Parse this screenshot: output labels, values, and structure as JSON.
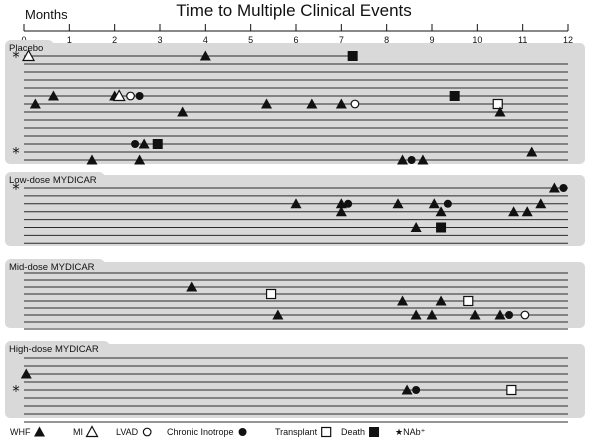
{
  "chart_data": {
    "type": "scatter",
    "title": "Time to Multiple Clinical Events",
    "xlabel": "Months",
    "xlim": [
      0,
      12
    ],
    "xticks": [
      0,
      1,
      2,
      3,
      4,
      5,
      6,
      7,
      8,
      9,
      10,
      11,
      12
    ],
    "colors": {
      "panel": "#d9d9d9",
      "line": "#2b2b2b",
      "marker": "#111111",
      "open": "#ffffff"
    },
    "legend": [
      {
        "label": "WHF",
        "shape": "triangle",
        "fill": "filled"
      },
      {
        "label": "MI",
        "shape": "triangle",
        "fill": "open"
      },
      {
        "label": "LVAD",
        "shape": "circle",
        "fill": "open"
      },
      {
        "label": "Chronic Inotrope",
        "shape": "circle",
        "fill": "filled"
      },
      {
        "label": "Transplant",
        "shape": "square",
        "fill": "open"
      },
      {
        "label": "Death",
        "shape": "square",
        "fill": "filled"
      },
      {
        "label": "★NAb⁺",
        "shape": "star",
        "fill": "text"
      }
    ],
    "panels": [
      {
        "name": "Placebo",
        "patient_count": 14,
        "nab_rows": [
          0,
          12
        ],
        "lines": [
          {
            "row": 0,
            "end": 7.25
          },
          {
            "row": 1,
            "end": 12
          },
          {
            "row": 2,
            "end": 12
          },
          {
            "row": 3,
            "end": 12
          },
          {
            "row": 4,
            "end": 12
          },
          {
            "row": 5,
            "end": 12
          },
          {
            "row": 6,
            "end": 12
          },
          {
            "row": 7,
            "end": 12
          },
          {
            "row": 8,
            "end": 12
          },
          {
            "row": 9,
            "end": 12
          },
          {
            "row": 10,
            "end": 12
          },
          {
            "row": 11,
            "end": 12
          },
          {
            "row": 12,
            "end": 12
          },
          {
            "row": 13,
            "end": 12
          }
        ],
        "events": [
          {
            "row": 0,
            "x": 0.1,
            "type": "MI"
          },
          {
            "row": 0,
            "x": 4.0,
            "type": "WHF"
          },
          {
            "row": 0,
            "x": 7.25,
            "type": "Death"
          },
          {
            "row": 5,
            "x": 0.65,
            "type": "WHF"
          },
          {
            "row": 5,
            "x": 2.0,
            "type": "WHF"
          },
          {
            "row": 5,
            "x": 2.1,
            "type": "MI"
          },
          {
            "row": 5,
            "x": 2.35,
            "type": "LVAD"
          },
          {
            "row": 5,
            "x": 2.55,
            "type": "Chronic Inotrope"
          },
          {
            "row": 5,
            "x": 9.5,
            "type": "Death"
          },
          {
            "row": 6,
            "x": 0.25,
            "type": "WHF"
          },
          {
            "row": 6,
            "x": 5.35,
            "type": "WHF"
          },
          {
            "row": 6,
            "x": 6.35,
            "type": "WHF"
          },
          {
            "row": 6,
            "x": 7.0,
            "type": "WHF"
          },
          {
            "row": 6,
            "x": 7.3,
            "type": "LVAD"
          },
          {
            "row": 6,
            "x": 10.45,
            "type": "Transplant"
          },
          {
            "row": 7,
            "x": 3.5,
            "type": "WHF"
          },
          {
            "row": 7,
            "x": 10.5,
            "type": "WHF"
          },
          {
            "row": 11,
            "x": 2.45,
            "type": "Chronic Inotrope"
          },
          {
            "row": 11,
            "x": 2.65,
            "type": "WHF"
          },
          {
            "row": 11,
            "x": 2.95,
            "type": "Death"
          },
          {
            "row": 12,
            "x": 11.2,
            "type": "WHF"
          },
          {
            "row": 13,
            "x": 1.5,
            "type": "WHF"
          },
          {
            "row": 13,
            "x": 2.55,
            "type": "WHF"
          },
          {
            "row": 13,
            "x": 8.35,
            "type": "WHF"
          },
          {
            "row": 13,
            "x": 8.55,
            "type": "Chronic Inotrope"
          },
          {
            "row": 13,
            "x": 8.8,
            "type": "WHF"
          }
        ]
      },
      {
        "name": "Low-dose MYDICAR",
        "patient_count": 8,
        "nab_rows": [
          0
        ],
        "lines": [
          {
            "row": 0,
            "end": 12
          },
          {
            "row": 1,
            "end": 12
          },
          {
            "row": 2,
            "end": 12
          },
          {
            "row": 3,
            "end": 12
          },
          {
            "row": 4,
            "end": 12
          },
          {
            "row": 5,
            "end": 12
          },
          {
            "row": 6,
            "end": 12
          },
          {
            "row": 7,
            "end": 12
          }
        ],
        "events": [
          {
            "row": 0,
            "x": 11.7,
            "type": "WHF"
          },
          {
            "row": 0,
            "x": 11.9,
            "type": "Chronic Inotrope"
          },
          {
            "row": 2,
            "x": 6.0,
            "type": "WHF"
          },
          {
            "row": 2,
            "x": 7.0,
            "type": "WHF"
          },
          {
            "row": 2,
            "x": 7.15,
            "type": "Chronic Inotrope"
          },
          {
            "row": 2,
            "x": 8.25,
            "type": "WHF"
          },
          {
            "row": 2,
            "x": 9.05,
            "type": "WHF"
          },
          {
            "row": 2,
            "x": 9.35,
            "type": "Chronic Inotrope"
          },
          {
            "row": 2,
            "x": 11.4,
            "type": "WHF"
          },
          {
            "row": 3,
            "x": 7.0,
            "type": "WHF"
          },
          {
            "row": 3,
            "x": 9.2,
            "type": "WHF"
          },
          {
            "row": 3,
            "x": 10.8,
            "type": "WHF"
          },
          {
            "row": 3,
            "x": 11.1,
            "type": "WHF"
          },
          {
            "row": 5,
            "x": 8.65,
            "type": "WHF"
          },
          {
            "row": 5,
            "x": 9.2,
            "type": "Death"
          }
        ]
      },
      {
        "name": "Mid-dose MYDICAR",
        "patient_count": 9,
        "nab_rows": [],
        "lines": [
          {
            "row": 0,
            "end": 12
          },
          {
            "row": 1,
            "end": 12
          },
          {
            "row": 2,
            "end": 12
          },
          {
            "row": 3,
            "end": 12
          },
          {
            "row": 4,
            "end": 12
          },
          {
            "row": 5,
            "end": 12
          },
          {
            "row": 6,
            "end": 12
          },
          {
            "row": 7,
            "end": 12
          },
          {
            "row": 8,
            "end": 12
          }
        ],
        "events": [
          {
            "row": 2,
            "x": 3.7,
            "type": "WHF"
          },
          {
            "row": 3,
            "x": 5.45,
            "type": "Transplant"
          },
          {
            "row": 4,
            "x": 8.35,
            "type": "WHF"
          },
          {
            "row": 4,
            "x": 9.2,
            "type": "WHF"
          },
          {
            "row": 4,
            "x": 9.8,
            "type": "Transplant"
          },
          {
            "row": 6,
            "x": 5.6,
            "type": "WHF"
          },
          {
            "row": 6,
            "x": 8.65,
            "type": "WHF"
          },
          {
            "row": 6,
            "x": 9.0,
            "type": "WHF"
          },
          {
            "row": 6,
            "x": 9.95,
            "type": "WHF"
          },
          {
            "row": 6,
            "x": 10.5,
            "type": "WHF"
          },
          {
            "row": 6,
            "x": 10.7,
            "type": "Chronic Inotrope"
          },
          {
            "row": 6,
            "x": 11.05,
            "type": "LVAD"
          }
        ]
      },
      {
        "name": "High-dose MYDICAR",
        "patient_count": 9,
        "nab_rows": [
          4
        ],
        "lines": [
          {
            "row": 0,
            "end": 12
          },
          {
            "row": 1,
            "end": 12
          },
          {
            "row": 2,
            "end": 12
          },
          {
            "row": 3,
            "end": 12
          },
          {
            "row": 4,
            "end": 12
          },
          {
            "row": 5,
            "end": 12
          },
          {
            "row": 6,
            "end": 12
          },
          {
            "row": 7,
            "end": 12
          },
          {
            "row": 8,
            "end": 12
          }
        ],
        "events": [
          {
            "row": 2,
            "x": 0.05,
            "type": "WHF"
          },
          {
            "row": 4,
            "x": 8.45,
            "type": "WHF"
          },
          {
            "row": 4,
            "x": 8.65,
            "type": "Chronic Inotrope"
          },
          {
            "row": 4,
            "x": 10.75,
            "type": "Transplant"
          }
        ]
      }
    ]
  }
}
